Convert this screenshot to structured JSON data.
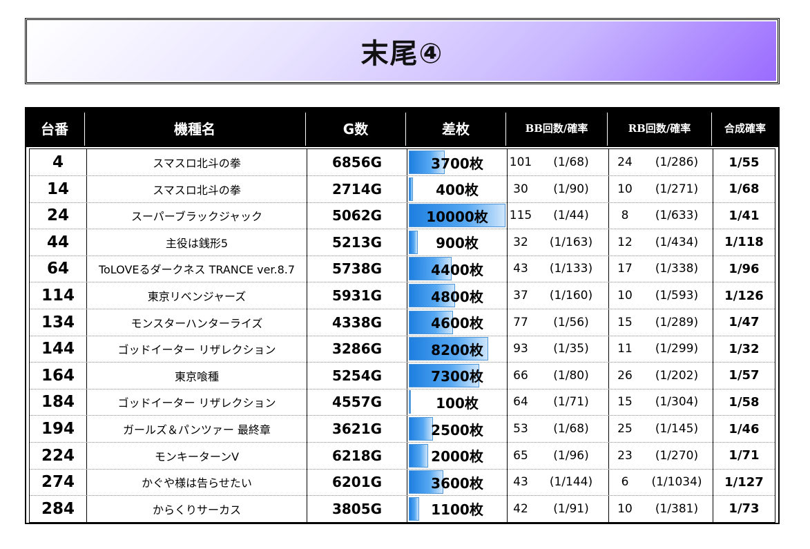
{
  "title": "末尾④",
  "headers": [
    "台番",
    "機種名",
    "G数",
    "差枚",
    "BB回数/確率",
    "RB回数/確率",
    "合成確率"
  ],
  "bar_scale_max": 10000,
  "rows": [
    {
      "no": "4",
      "name": "スマスロ北斗の拳",
      "games": "6856G",
      "diff": "3700枚",
      "diff_value": 3700,
      "bb": "101",
      "bb_prob": "(1/68)",
      "rb": "24",
      "rb_prob": "(1/286)",
      "total": "1/55"
    },
    {
      "no": "14",
      "name": "スマスロ北斗の拳",
      "games": "2714G",
      "diff": "400枚",
      "diff_value": 400,
      "bb": "30",
      "bb_prob": "(1/90)",
      "rb": "10",
      "rb_prob": "(1/271)",
      "total": "1/68"
    },
    {
      "no": "24",
      "name": "スーパーブラックジャック",
      "games": "5062G",
      "diff": "10000枚",
      "diff_value": 10000,
      "bb": "115",
      "bb_prob": "(1/44)",
      "rb": "8",
      "rb_prob": "(1/633)",
      "total": "1/41"
    },
    {
      "no": "44",
      "name": "主役は銭形5",
      "games": "5213G",
      "diff": "900枚",
      "diff_value": 900,
      "bb": "32",
      "bb_prob": "(1/163)",
      "rb": "12",
      "rb_prob": "(1/434)",
      "total": "1/118"
    },
    {
      "no": "64",
      "name": "ToLOVEるダークネス TRANCE ver.8.7",
      "games": "5738G",
      "diff": "4400枚",
      "diff_value": 4400,
      "bb": "43",
      "bb_prob": "(1/133)",
      "rb": "17",
      "rb_prob": "(1/338)",
      "total": "1/96"
    },
    {
      "no": "114",
      "name": "東京リベンジャーズ",
      "games": "5931G",
      "diff": "4800枚",
      "diff_value": 4800,
      "bb": "37",
      "bb_prob": "(1/160)",
      "rb": "10",
      "rb_prob": "(1/593)",
      "total": "1/126"
    },
    {
      "no": "134",
      "name": "モンスターハンターライズ",
      "games": "4338G",
      "diff": "4600枚",
      "diff_value": 4600,
      "bb": "77",
      "bb_prob": "(1/56)",
      "rb": "15",
      "rb_prob": "(1/289)",
      "total": "1/47"
    },
    {
      "no": "144",
      "name": "ゴッドイーター リザレクション",
      "games": "3286G",
      "diff": "8200枚",
      "diff_value": 8200,
      "bb": "93",
      "bb_prob": "(1/35)",
      "rb": "11",
      "rb_prob": "(1/299)",
      "total": "1/32"
    },
    {
      "no": "164",
      "name": "東京喰種",
      "games": "5254G",
      "diff": "7300枚",
      "diff_value": 7300,
      "bb": "66",
      "bb_prob": "(1/80)",
      "rb": "26",
      "rb_prob": "(1/202)",
      "total": "1/57"
    },
    {
      "no": "184",
      "name": "ゴッドイーター リザレクション",
      "games": "4557G",
      "diff": "100枚",
      "diff_value": 100,
      "bb": "64",
      "bb_prob": "(1/71)",
      "rb": "15",
      "rb_prob": "(1/304)",
      "total": "1/58"
    },
    {
      "no": "194",
      "name": "ガールズ＆パンツァー 最終章",
      "games": "3621G",
      "diff": "2500枚",
      "diff_value": 2500,
      "bb": "53",
      "bb_prob": "(1/68)",
      "rb": "25",
      "rb_prob": "(1/145)",
      "total": "1/46"
    },
    {
      "no": "224",
      "name": "モンキーターンV",
      "games": "6218G",
      "diff": "2000枚",
      "diff_value": 2000,
      "bb": "65",
      "bb_prob": "(1/96)",
      "rb": "23",
      "rb_prob": "(1/270)",
      "total": "1/71"
    },
    {
      "no": "274",
      "name": "かぐや様は告らせたい",
      "games": "6201G",
      "diff": "3600枚",
      "diff_value": 3600,
      "bb": "43",
      "bb_prob": "(1/144)",
      "rb": "6",
      "rb_prob": "(1/1034)",
      "total": "1/127"
    },
    {
      "no": "284",
      "name": "からくりサーカス",
      "games": "3805G",
      "diff": "1100枚",
      "diff_value": 1100,
      "bb": "42",
      "bb_prob": "(1/91)",
      "rb": "10",
      "rb_prob": "(1/381)",
      "total": "1/73"
    }
  ]
}
